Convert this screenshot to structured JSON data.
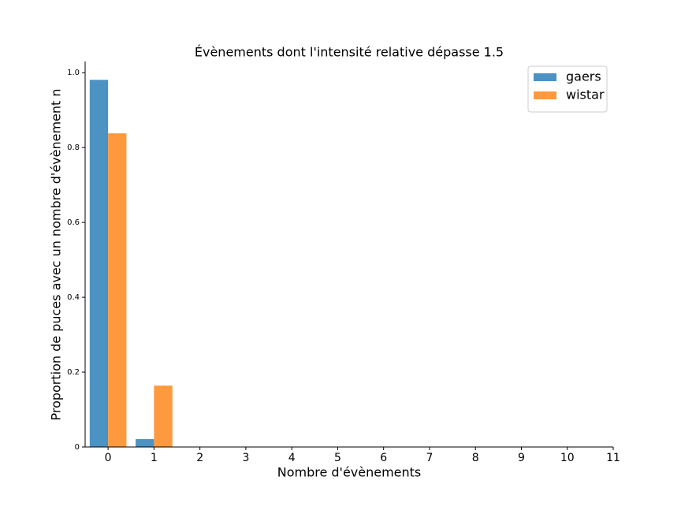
{
  "chart_data": {
    "type": "bar",
    "title": "Évènements dont l'intensité relative dépasse 1.5",
    "xlabel": "Nombre d'évènements",
    "ylabel": "Proportion de puces avec un nombre d'évènement n",
    "x": [
      0,
      1
    ],
    "series": [
      {
        "name": "gaers",
        "color": "#4c92c3",
        "values": [
          0.981,
          0.021
        ]
      },
      {
        "name": "wistar",
        "color": "#ff993e",
        "values": [
          0.838,
          0.164
        ]
      }
    ],
    "xlim": [
      -0.5,
      11
    ],
    "xticks": [
      0,
      1,
      2,
      3,
      4,
      5,
      6,
      7,
      8,
      9,
      10,
      11
    ],
    "ylim": [
      0,
      1.03
    ],
    "yticks": [
      0.0,
      {
        "value": 0.2,
        "label": "0.2"
      },
      {
        "value": 0.4,
        "label": "0.4"
      },
      {
        "value": 0.6,
        "label": "0.6"
      },
      {
        "value": 0.8,
        "label": "0.8"
      },
      {
        "value": 1.0,
        "label": "1.0"
      }
    ],
    "legend": "upper right"
  }
}
